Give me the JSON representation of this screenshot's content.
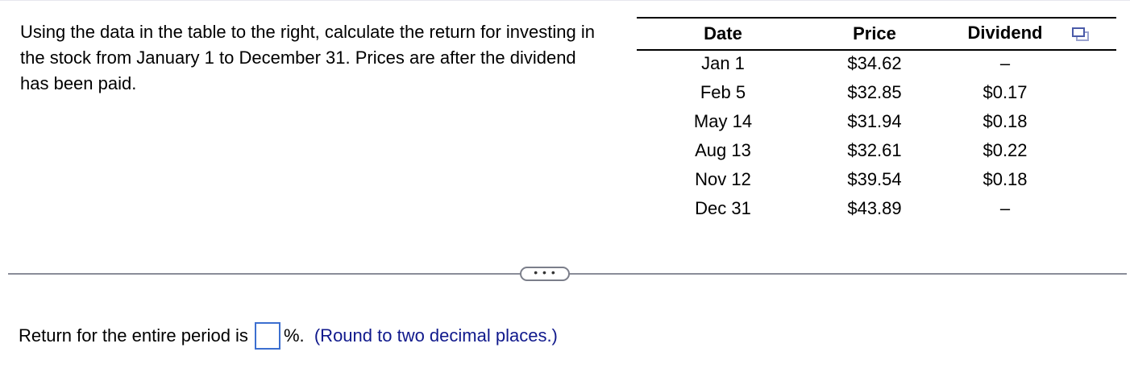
{
  "question": "Using the data in the table to the right, calculate the return for investing in the stock from January 1 to December 31. Prices are after the dividend has been paid.",
  "table": {
    "headers": [
      "Date",
      "Price",
      "Dividend"
    ],
    "rows": [
      [
        "Jan 1",
        "$34.62",
        "–"
      ],
      [
        "Feb 5",
        "$32.85",
        "$0.17"
      ],
      [
        "May 14",
        "$31.94",
        "$0.18"
      ],
      [
        "Aug 13",
        "$32.61",
        "$0.22"
      ],
      [
        "Nov 12",
        "$39.54",
        "$0.18"
      ],
      [
        "Dec 31",
        "$43.89",
        "–"
      ]
    ]
  },
  "more_button": "• • •",
  "answer": {
    "prefix": "Return for the entire period is",
    "value": "",
    "suffix": "%.",
    "hint": "(Round to two decimal places.)"
  },
  "colors": {
    "input_border": "#3c6fd0",
    "hint": "#10198c",
    "divider": "#8a8d99"
  }
}
